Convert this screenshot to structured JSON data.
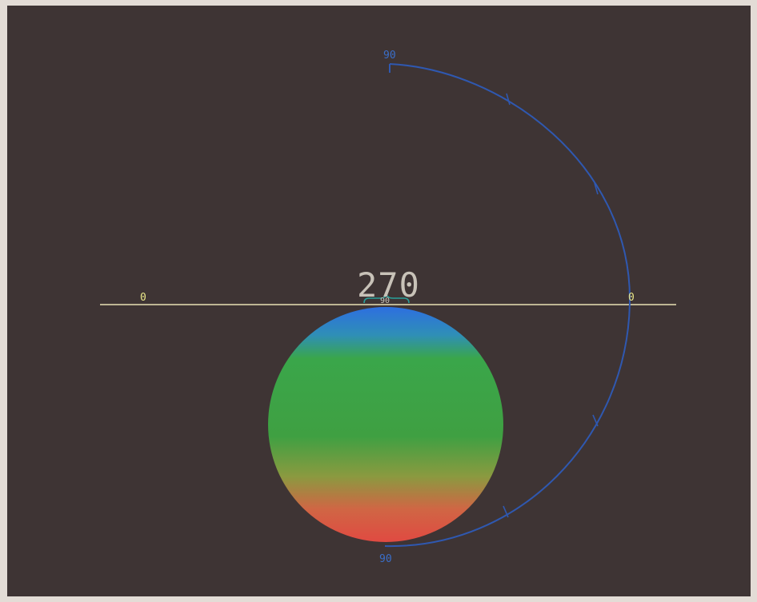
{
  "viewport": {
    "background": "#3e3434",
    "frame_color": "#e3dcd6"
  },
  "labels": {
    "angle_value": "270",
    "axis_left": "0",
    "axis_right": "0",
    "arc_top": "90",
    "arc_bottom": "90",
    "top_small": "90"
  },
  "colors": {
    "horizon_line": "#e9e2b4",
    "axis_label": "#eae88a",
    "angle_value": "#c8c2b8",
    "arc": "#2f58b0",
    "arc_label": "#3a6ec8",
    "bracket": "#29a09a",
    "sphere_top": "#2d6fe0",
    "sphere_mid": "#3aa64a",
    "sphere_bottom": "#e04a42"
  },
  "icons": {
    "arc_marker": "arrow-tick-icon"
  }
}
